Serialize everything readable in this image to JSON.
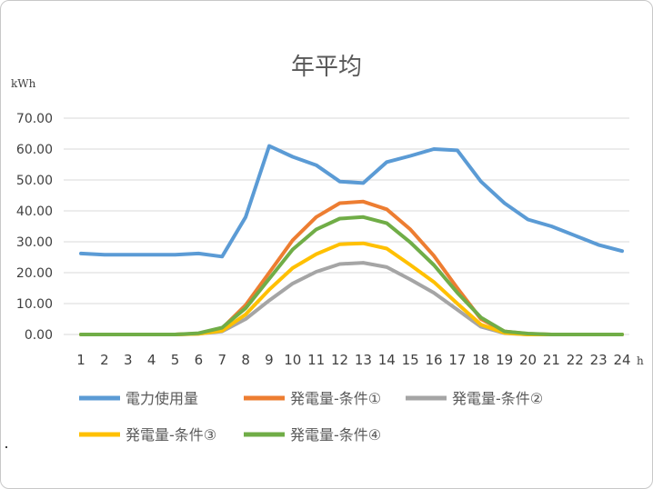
{
  "chart_data": {
    "type": "line",
    "title": "年平均",
    "ylabel": "kWh",
    "xlabel": "h",
    "ylim": [
      0,
      70
    ],
    "yticks": [
      "0.00",
      "10.00",
      "20.00",
      "30.00",
      "40.00",
      "50.00",
      "60.00",
      "70.00"
    ],
    "categories": [
      "1",
      "2",
      "3",
      "4",
      "5",
      "6",
      "7",
      "8",
      "9",
      "10",
      "11",
      "12",
      "13",
      "14",
      "15",
      "16",
      "17",
      "18",
      "19",
      "20",
      "21",
      "22",
      "23",
      "24"
    ],
    "grid": true,
    "legend_position": "bottom",
    "series": [
      {
        "name": "電力使用量",
        "color": "#5b9bd5",
        "values": [
          26.2,
          25.8,
          25.8,
          25.8,
          25.8,
          26.2,
          25.2,
          38,
          61,
          57.5,
          54.8,
          49.5,
          49,
          55.8,
          57.8,
          60,
          59.6,
          49.5,
          42.5,
          37.2,
          35,
          32,
          29,
          27
        ]
      },
      {
        "name": "発電量-条件①",
        "color": "#ed7d31",
        "values": [
          0,
          0,
          0,
          0,
          0,
          0.3,
          2,
          9.5,
          20,
          30.5,
          38,
          42.5,
          43,
          40.5,
          34,
          25.5,
          15,
          5,
          1,
          0.2,
          0,
          0,
          0,
          0
        ]
      },
      {
        "name": "発電量-条件②",
        "color": "#a5a5a5",
        "values": [
          0,
          0,
          0,
          0,
          0,
          0.2,
          1,
          5,
          11,
          16.5,
          20.3,
          22.8,
          23.2,
          21.8,
          17.8,
          13.5,
          8,
          2.5,
          0.4,
          0,
          0,
          0,
          0,
          0
        ]
      },
      {
        "name": "発電量-条件③",
        "color": "#ffc000",
        "values": [
          0,
          0,
          0,
          0,
          0,
          0.2,
          1.2,
          6.5,
          14.5,
          21.5,
          26,
          29.2,
          29.5,
          27.8,
          22.5,
          17,
          10,
          3.2,
          0.5,
          0,
          0,
          0,
          0,
          0
        ]
      },
      {
        "name": "発電量-条件④",
        "color": "#70ad47",
        "values": [
          0,
          0,
          0,
          0,
          0,
          0.4,
          2.2,
          8.5,
          18,
          27.5,
          34,
          37.5,
          38,
          36,
          29.8,
          22.5,
          13.5,
          5.5,
          1,
          0.3,
          0,
          0,
          0,
          0
        ]
      }
    ]
  }
}
